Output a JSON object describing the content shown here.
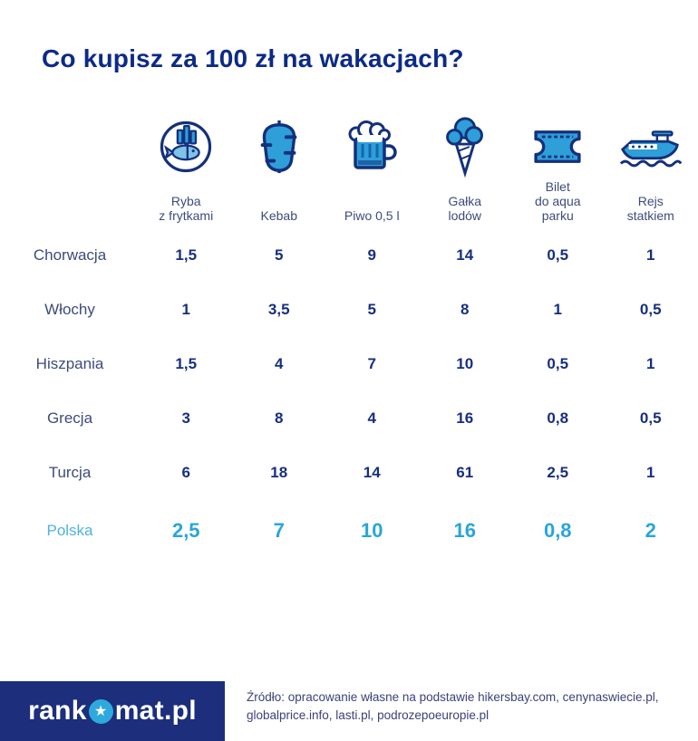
{
  "title": "Co kupisz za 100 zł na wakacjach?",
  "colors": {
    "title_navy": "#0c2a87",
    "value_navy": "#172f80",
    "label_muted_navy": "#3d4b7c",
    "highlight_cyan": "#29a5dc",
    "icon_fill_blue": "#2e9fd8",
    "icon_stroke_navy": "#14307c",
    "footer_bg_navy": "#1c2e7c"
  },
  "chart_data": {
    "type": "table",
    "title": "Co kupisz za 100 zł na wakacjach?",
    "categories": [
      "Ryba z frytkami",
      "Kebab",
      "Piwo 0,5 l",
      "Gałka lodów",
      "Bilet do aqua parku",
      "Rejs statkiem"
    ],
    "series": [
      {
        "name": "Chorwacja",
        "values": [
          1.5,
          5,
          9,
          14,
          0.5,
          1
        ]
      },
      {
        "name": "Włochy",
        "values": [
          1,
          3.5,
          5,
          8,
          1,
          0.5
        ]
      },
      {
        "name": "Hiszpania",
        "values": [
          1.5,
          4,
          7,
          10,
          0.5,
          1
        ]
      },
      {
        "name": "Grecja",
        "values": [
          3,
          8,
          4,
          16,
          0.8,
          0.5
        ]
      },
      {
        "name": "Turcja",
        "values": [
          6,
          18,
          14,
          61,
          2.5,
          1
        ]
      },
      {
        "name": "Polska",
        "values": [
          2.5,
          7,
          10,
          16,
          0.8,
          2
        ]
      }
    ],
    "highlighted_series": "Polska"
  },
  "columns": [
    {
      "label": "Ryba\nz frytkami",
      "icon": "fish-and-chips"
    },
    {
      "label": "Kebab",
      "icon": "kebab"
    },
    {
      "label": "Piwo 0,5 l",
      "icon": "beer-mug"
    },
    {
      "label": "Gałka\nlodów",
      "icon": "ice-cream"
    },
    {
      "label": "Bilet\ndo aqua\nparku",
      "icon": "ticket"
    },
    {
      "label": "Rejs\nstatkiem",
      "icon": "boat"
    }
  ],
  "rows": [
    {
      "country": "Chorwacja",
      "values": [
        "1,5",
        "5",
        "9",
        "14",
        "0,5",
        "1"
      ],
      "highlight": false
    },
    {
      "country": "Włochy",
      "values": [
        "1",
        "3,5",
        "5",
        "8",
        "1",
        "0,5"
      ],
      "highlight": false
    },
    {
      "country": "Hiszpania",
      "values": [
        "1,5",
        "4",
        "7",
        "10",
        "0,5",
        "1"
      ],
      "highlight": false
    },
    {
      "country": "Grecja",
      "values": [
        "3",
        "8",
        "4",
        "16",
        "0,8",
        "0,5"
      ],
      "highlight": false
    },
    {
      "country": "Turcja",
      "values": [
        "6",
        "18",
        "14",
        "61",
        "2,5",
        "1"
      ],
      "highlight": false
    },
    {
      "country": "Polska",
      "values": [
        "2,5",
        "7",
        "10",
        "16",
        "0,8",
        "2"
      ],
      "highlight": true
    }
  ],
  "footer": {
    "logo_left": "rank",
    "logo_right": "mat.pl",
    "logo_star": "★",
    "source": "Źródło: opracowanie własne na podstawie hikersbay.com, cenynaswiecie.pl, globalprice.info, lasti.pl, podrozepoeuropie.pl"
  }
}
